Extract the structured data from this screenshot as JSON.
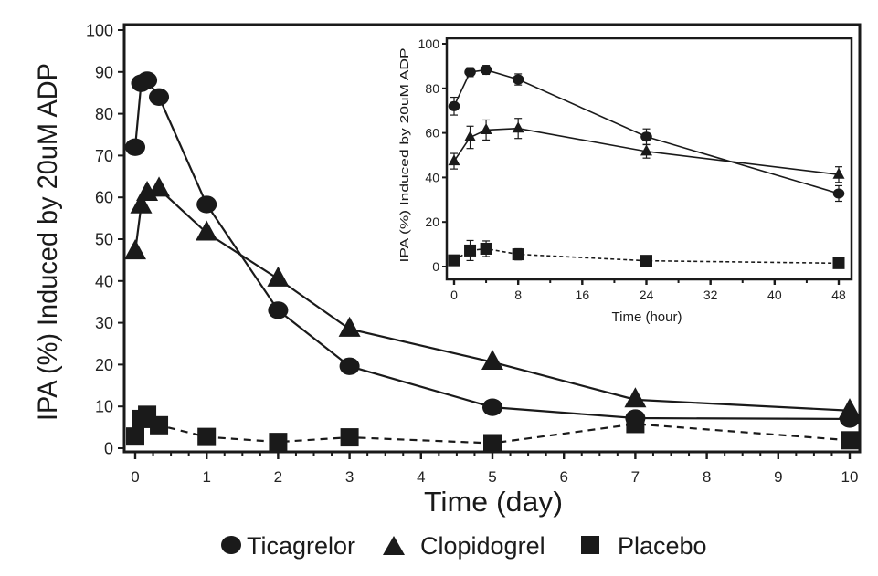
{
  "chart_data": [
    {
      "id": "main",
      "type": "line",
      "title": "",
      "xlabel": "Time (day)",
      "ylabel": "IPA (%) Induced by 20uM ADP",
      "xlim": [
        0,
        10
      ],
      "ylim": [
        0,
        100
      ],
      "xticks": [
        0,
        1,
        2,
        3,
        4,
        5,
        6,
        7,
        8,
        9,
        10
      ],
      "xtick_labels": [
        "0",
        "1",
        "2",
        "3",
        "4",
        "5",
        "6",
        "7",
        "8",
        "9",
        "10"
      ],
      "x_minor_step": 0.25,
      "yticks": [
        0,
        10,
        20,
        30,
        40,
        50,
        60,
        70,
        80,
        90,
        100
      ],
      "ytick_labels": [
        "0",
        "10",
        "20",
        "30",
        "40",
        "50",
        "60",
        "70",
        "80",
        "90",
        "100"
      ],
      "grid": false,
      "series": [
        {
          "name": "Ticagrelor",
          "marker": "circle",
          "line": "solid",
          "x": [
            0,
            0.083,
            0.167,
            0.333,
            1,
            2,
            3,
            5,
            7,
            10
          ],
          "y": [
            72,
            87.3,
            88,
            84,
            58.3,
            33,
            19.6,
            9.8,
            7.2,
            7
          ]
        },
        {
          "name": "Clopidogrel",
          "marker": "triangle",
          "line": "solid",
          "x": [
            0,
            0.083,
            0.167,
            0.333,
            1,
            2,
            3,
            5,
            7,
            10
          ],
          "y": [
            47,
            58,
            61,
            62,
            51.5,
            40.5,
            28.5,
            20.6,
            11.6,
            9
          ]
        },
        {
          "name": "Placebo",
          "marker": "square",
          "line": "dashed",
          "x": [
            0,
            0.083,
            0.167,
            0.333,
            1,
            2,
            3,
            5,
            7,
            10
          ],
          "y": [
            2.8,
            7,
            8,
            5.5,
            2.7,
            1.5,
            2.6,
            1.2,
            5.8,
            1.9
          ]
        }
      ]
    },
    {
      "id": "inset",
      "type": "line",
      "title": "",
      "xlabel": "Time (hour)",
      "ylabel": "IPA (%) Induced by 20uM ADP",
      "xlim": [
        0,
        48
      ],
      "ylim": [
        0,
        100
      ],
      "xticks": [
        0,
        8,
        16,
        24,
        32,
        40,
        48
      ],
      "xtick_labels": [
        "0",
        "8",
        "16",
        "24",
        "32",
        "40",
        "48"
      ],
      "x_minor_step": 4,
      "yticks": [
        0,
        20,
        40,
        60,
        80,
        100
      ],
      "ytick_labels": [
        "0",
        "20",
        "40",
        "60",
        "80",
        "100"
      ],
      "grid": false,
      "series": [
        {
          "name": "Ticagrelor",
          "marker": "circle",
          "line": "solid",
          "x": [
            0,
            2,
            4,
            8,
            24,
            48
          ],
          "y": [
            72,
            87.3,
            88.3,
            84,
            58.3,
            32.8
          ],
          "err": [
            4,
            2,
            2,
            2.5,
            3.5,
            3.5
          ]
        },
        {
          "name": "Clopidogrel",
          "marker": "triangle",
          "line": "solid",
          "x": [
            0,
            2,
            4,
            8,
            24,
            48
          ],
          "y": [
            47.3,
            58,
            61.3,
            62,
            51.7,
            41.3
          ],
          "err": [
            3.5,
            5,
            4.5,
            4.5,
            3,
            3.5
          ]
        },
        {
          "name": "Placebo",
          "marker": "square",
          "line": "dashed",
          "x": [
            0,
            2,
            4,
            8,
            24,
            48
          ],
          "y": [
            2.8,
            7.2,
            8,
            5.5,
            2.6,
            1.5
          ],
          "err": [
            0,
            4.5,
            3.5,
            2.5,
            0,
            0
          ]
        }
      ]
    }
  ],
  "legend": {
    "position": "bottom-center",
    "items": [
      {
        "label": "Ticagrelor",
        "marker": "circle"
      },
      {
        "label": "Clopidogrel",
        "marker": "triangle"
      },
      {
        "label": "Placebo",
        "marker": "square"
      }
    ]
  },
  "colors": {
    "ink": "#1a1a1a",
    "background": "#ffffff"
  }
}
